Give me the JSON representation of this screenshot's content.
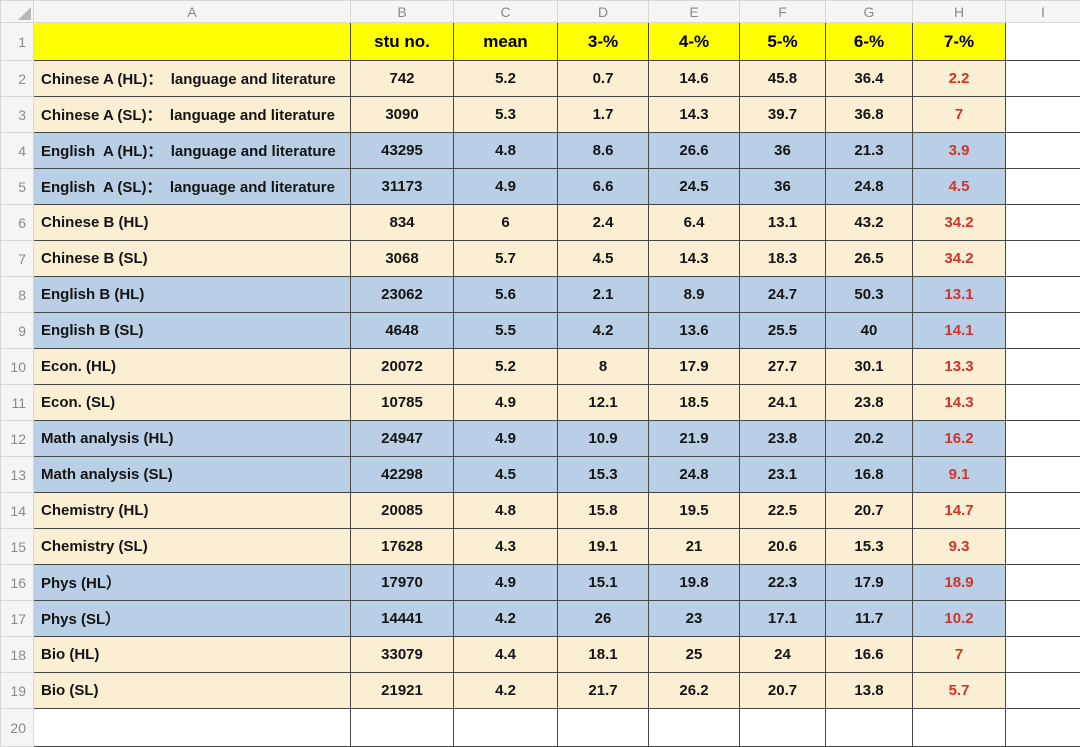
{
  "sheet": {
    "colors": {
      "header_fill": "#FFFF00",
      "band_cream": "#FAEFD2",
      "band_blue": "#B9CFE5",
      "red_text": "#D0342B",
      "grid_border": "#474747"
    },
    "column_letters": [
      "A",
      "B",
      "C",
      "D",
      "E",
      "F",
      "G",
      "H",
      "I"
    ],
    "header_row": {
      "row_number": "1",
      "cells": [
        "",
        "stu no.",
        "mean",
        "3-%",
        "4-%",
        "5-%",
        "6-%",
        "7-%",
        ""
      ]
    },
    "rows": [
      {
        "row_number": "2",
        "band": "cream",
        "label": "Chinese A (HL)：  language and literature",
        "values": [
          "742",
          "5.2",
          "0.7",
          "14.6",
          "45.8",
          "36.4",
          "2.2"
        ]
      },
      {
        "row_number": "3",
        "band": "cream",
        "label": "Chinese A (SL)：  language and literature",
        "values": [
          "3090",
          "5.3",
          "1.7",
          "14.3",
          "39.7",
          "36.8",
          "7"
        ]
      },
      {
        "row_number": "4",
        "band": "blue",
        "label": "English  A (HL)：  language and literature",
        "values": [
          "43295",
          "4.8",
          "8.6",
          "26.6",
          "36",
          "21.3",
          "3.9"
        ]
      },
      {
        "row_number": "5",
        "band": "blue",
        "label": "English  A (SL)：  language and literature",
        "values": [
          "31173",
          "4.9",
          "6.6",
          "24.5",
          "36",
          "24.8",
          "4.5"
        ]
      },
      {
        "row_number": "6",
        "band": "cream",
        "label": "Chinese B (HL)",
        "values": [
          "834",
          "6",
          "2.4",
          "6.4",
          "13.1",
          "43.2",
          "34.2"
        ]
      },
      {
        "row_number": "7",
        "band": "cream",
        "label": "Chinese B (SL)",
        "values": [
          "3068",
          "5.7",
          "4.5",
          "14.3",
          "18.3",
          "26.5",
          "34.2"
        ]
      },
      {
        "row_number": "8",
        "band": "blue",
        "label": "English B (HL)",
        "values": [
          "23062",
          "5.6",
          "2.1",
          "8.9",
          "24.7",
          "50.3",
          "13.1"
        ]
      },
      {
        "row_number": "9",
        "band": "blue",
        "label": "English B (SL)",
        "values": [
          "4648",
          "5.5",
          "4.2",
          "13.6",
          "25.5",
          "40",
          "14.1"
        ]
      },
      {
        "row_number": "10",
        "band": "cream",
        "label": "Econ. (HL)",
        "values": [
          "20072",
          "5.2",
          "8",
          "17.9",
          "27.7",
          "30.1",
          "13.3"
        ]
      },
      {
        "row_number": "11",
        "band": "cream",
        "label": "Econ. (SL)",
        "values": [
          "10785",
          "4.9",
          "12.1",
          "18.5",
          "24.1",
          "23.8",
          "14.3"
        ]
      },
      {
        "row_number": "12",
        "band": "blue",
        "label": "Math analysis (HL)",
        "values": [
          "24947",
          "4.9",
          "10.9",
          "21.9",
          "23.8",
          "20.2",
          "16.2"
        ]
      },
      {
        "row_number": "13",
        "band": "blue",
        "label": "Math analysis (SL)",
        "values": [
          "42298",
          "4.5",
          "15.3",
          "24.8",
          "23.1",
          "16.8",
          "9.1"
        ]
      },
      {
        "row_number": "14",
        "band": "cream",
        "label": "Chemistry (HL)",
        "values": [
          "20085",
          "4.8",
          "15.8",
          "19.5",
          "22.5",
          "20.7",
          "14.7"
        ]
      },
      {
        "row_number": "15",
        "band": "cream",
        "label": "Chemistry (SL)",
        "values": [
          "17628",
          "4.3",
          "19.1",
          "21",
          "20.6",
          "15.3",
          "9.3"
        ]
      },
      {
        "row_number": "16",
        "band": "blue",
        "label": "Phys (HL）",
        "values": [
          "17970",
          "4.9",
          "15.1",
          "19.8",
          "22.3",
          "17.9",
          "18.9"
        ]
      },
      {
        "row_number": "17",
        "band": "blue",
        "label": "Phys (SL）",
        "values": [
          "14441",
          "4.2",
          "26",
          "23",
          "17.1",
          "11.7",
          "10.2"
        ]
      },
      {
        "row_number": "18",
        "band": "cream",
        "label": "Bio (HL)",
        "values": [
          "33079",
          "4.4",
          "18.1",
          "25",
          "24",
          "16.6",
          "7"
        ]
      },
      {
        "row_number": "19",
        "band": "cream",
        "label": "Bio (SL)",
        "values": [
          "21921",
          "4.2",
          "21.7",
          "26.2",
          "20.7",
          "13.8",
          "5.7"
        ]
      }
    ],
    "empty_row": {
      "row_number": "20"
    }
  }
}
